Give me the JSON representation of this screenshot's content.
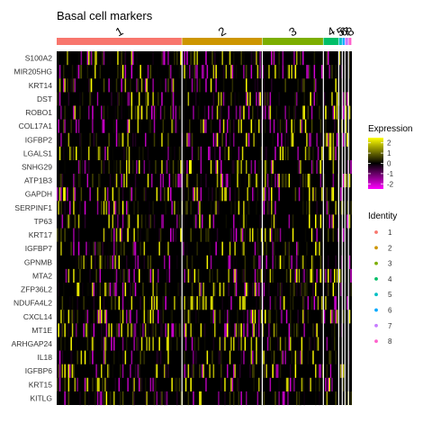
{
  "chart_data": {
    "type": "heatmap",
    "title": "Basal cell markers",
    "genes": [
      "S100A2",
      "MIR205HG",
      "KRT14",
      "DST",
      "ROBO1",
      "COL17A1",
      "IGFBP2",
      "LGALS1",
      "SNHG29",
      "ATP1B3",
      "GAPDH",
      "SERPINF1",
      "TP63",
      "KRT17",
      "IGFBP7",
      "GPNMB",
      "MTA2",
      "ZFP36L2",
      "NDUFA4L2",
      "CXCL14",
      "MT1E",
      "ARHGAP24",
      "IL18",
      "IGFBP6",
      "KRT15",
      "KITLG"
    ],
    "clusters": [
      {
        "name": "1",
        "fraction": 0.425,
        "color": "#F8766D"
      },
      {
        "name": "2",
        "fraction": 0.272,
        "color": "#CD9600"
      },
      {
        "name": "3",
        "fraction": 0.207,
        "color": "#7CAE00"
      },
      {
        "name": "4",
        "fraction": 0.052,
        "color": "#00BE67"
      },
      {
        "name": "5",
        "fraction": 0.012,
        "color": "#00BFC4"
      },
      {
        "name": "6",
        "fraction": 0.009,
        "color": "#00A9FF"
      },
      {
        "name": "7",
        "fraction": 0.012,
        "color": "#C77CFF"
      },
      {
        "name": "8",
        "fraction": 0.011,
        "color": "#FF61CC"
      }
    ],
    "expression_scale": {
      "label": "Expression",
      "min": -2.5,
      "max": 2.5,
      "ticks": [
        2,
        1,
        0,
        -1,
        -2
      ],
      "colors": {
        "low": "#FF00FF",
        "mid": "#000000",
        "high": "#FFFF00"
      }
    },
    "legend": {
      "title": "Identity",
      "placement": "right"
    }
  }
}
